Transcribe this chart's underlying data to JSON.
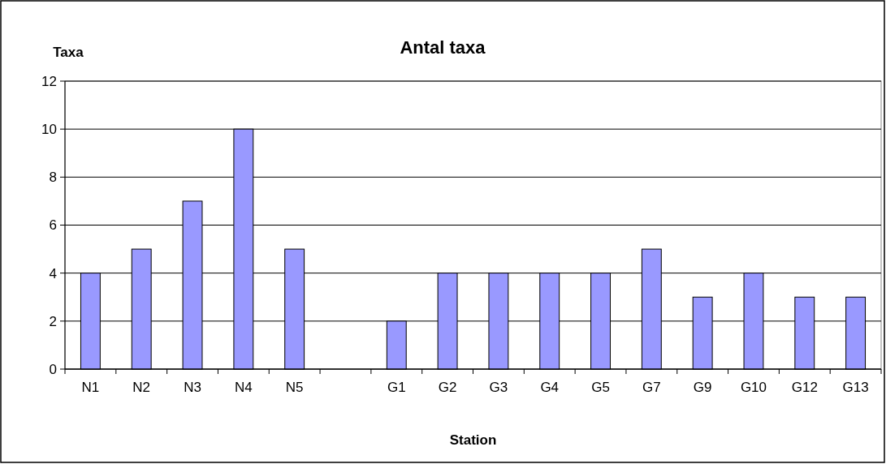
{
  "chart_data": {
    "type": "bar",
    "title": "Antal taxa",
    "xlabel": "Station",
    "ylabel": "Taxa",
    "categories": [
      "N1",
      "N2",
      "N3",
      "N4",
      "N5",
      null,
      "G1",
      "G2",
      "G3",
      "G4",
      "G5",
      "G7",
      "G9",
      "G10",
      "G12",
      "G13"
    ],
    "values": [
      4,
      5,
      7,
      10,
      5,
      null,
      2,
      4,
      4,
      4,
      4,
      5,
      3,
      4,
      3,
      3
    ],
    "color": "#9999ff",
    "ylim": [
      0,
      12
    ],
    "yticks": [
      0,
      2,
      4,
      6,
      8,
      10,
      12
    ],
    "grid": "y"
  }
}
